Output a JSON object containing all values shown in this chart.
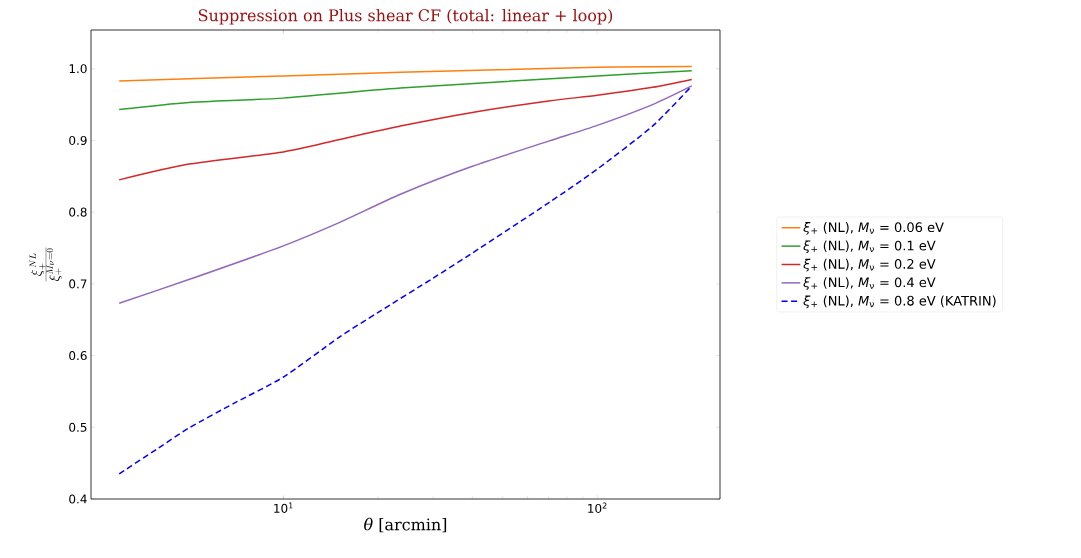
{
  "chart_data": {
    "type": "line",
    "title": "Suppression on Plus shear CF (total: linear + loop)",
    "xlabel": "*θ* [arcmin]",
    "ylabel": "\\frac{\\xi_+^{\\,NL}}{\\xi_+^{M_\\nu=0}}",
    "log": "x",
    "xlim": [
      2.44,
      246
    ],
    "ylim": [
      0.4,
      1.054
    ],
    "xticks": [
      {
        "value": 10,
        "label": "10$^{1}$"
      },
      {
        "value": 100,
        "label": "10$^{2}$"
      }
    ],
    "yticks": [
      0.4,
      0.5,
      0.6,
      0.7,
      0.8,
      0.9,
      {
        "value": 1.0,
        "label": "1.0"
      }
    ],
    "grid": false,
    "legend": "right",
    "marker": "none",
    "series": [
      {
        "name": "*ξ*$_{+}$ (NL), *M*$_{ν}$ = 0.06 eV",
        "color": "#ff7f0e",
        "line_style": "solid",
        "x": [
          3,
          10,
          23.6,
          100,
          200
        ],
        "values": [
          0.983,
          0.99,
          0.995,
          1.002,
          1.003
        ]
      },
      {
        "name": "*ξ*$_{+}$ (NL), *M*$_{ν}$ = 0.1 eV",
        "color": "#2ca02c",
        "line_style": "solid",
        "x": [
          3,
          5,
          10,
          23.6,
          100,
          200
        ],
        "values": [
          0.943,
          0.953,
          0.959,
          0.973,
          0.99,
          0.997
        ]
      },
      {
        "name": "*ξ*$_{+}$ (NL), *M*$_{ν}$ = 0.2 eV",
        "color": "#d62728",
        "line_style": "solid",
        "x": [
          3,
          5,
          10,
          15,
          23.6,
          40,
          70,
          100,
          150,
          200
        ],
        "values": [
          0.845,
          0.867,
          0.884,
          0.901,
          0.92,
          0.939,
          0.955,
          0.963,
          0.974,
          0.985
        ]
      },
      {
        "name": "*ξ*$_{+}$ (NL), *M*$_{ν}$ = 0.4 eV",
        "color": "#9467bd",
        "line_style": "solid",
        "x": [
          3,
          5,
          10,
          15,
          23.6,
          40,
          70,
          100,
          150,
          200
        ],
        "values": [
          0.673,
          0.706,
          0.753,
          0.785,
          0.825,
          0.864,
          0.899,
          0.921,
          0.95,
          0.976
        ]
      },
      {
        "name": "*ξ*$_{+}$ (NL), *M*$_{ν}$ = 0.8 eV (KATRIN)",
        "color": "#0000ff",
        "line_style": "dashed",
        "x": [
          3,
          4,
          5,
          7,
          10,
          15,
          20,
          30,
          40,
          70,
          100,
          150,
          200
        ],
        "values": [
          0.435,
          0.471,
          0.499,
          0.534,
          0.57,
          0.625,
          0.66,
          0.708,
          0.743,
          0.813,
          0.86,
          0.92,
          0.976
        ]
      }
    ]
  }
}
